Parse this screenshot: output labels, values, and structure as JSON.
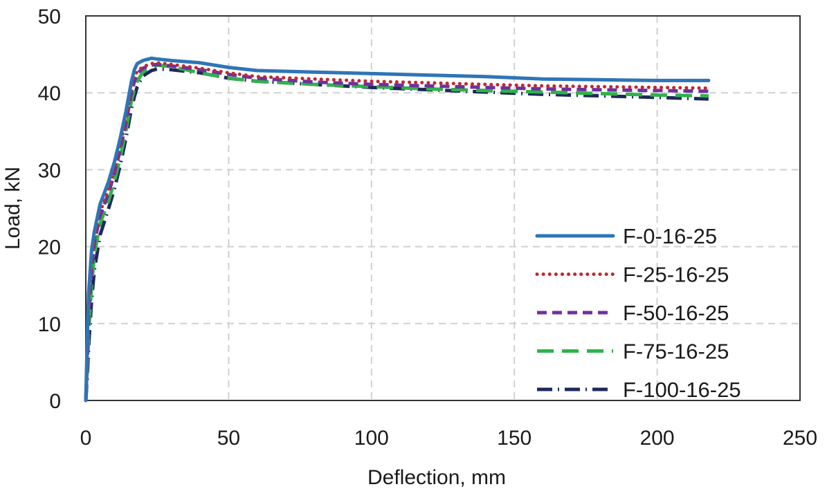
{
  "chart_data": {
    "type": "line",
    "title": "",
    "xlabel": "Deflection, mm",
    "ylabel": "Load, kN",
    "xlim": [
      0,
      250
    ],
    "ylim": [
      0,
      50
    ],
    "x_ticks": [
      0,
      50,
      100,
      150,
      200,
      250
    ],
    "y_ticks": [
      0,
      10,
      20,
      30,
      40,
      50
    ],
    "x_tick_labels": [
      "0",
      "50",
      "100",
      "150",
      "200",
      "250"
    ],
    "y_tick_labels": [
      "0",
      "10",
      "20",
      "30",
      "40",
      "50"
    ],
    "grid": "dashed",
    "legend_position": "right-center",
    "series": [
      {
        "name": "F-0-16-25",
        "color": "#2E75B6",
        "style": "solid",
        "x": [
          0,
          0.5,
          1,
          2,
          3,
          5,
          8,
          10,
          12,
          14,
          15,
          16,
          17,
          18,
          20,
          23,
          25,
          30,
          40,
          50,
          60,
          80,
          100,
          120,
          140,
          160,
          180,
          200,
          218
        ],
        "y": [
          0,
          8,
          14,
          19.5,
          22,
          25.5,
          28.5,
          31,
          34,
          37.5,
          39.5,
          41.5,
          43,
          43.8,
          44.2,
          44.5,
          44.4,
          44.2,
          43.9,
          43.3,
          42.9,
          42.7,
          42.5,
          42.3,
          42.1,
          41.8,
          41.7,
          41.6,
          41.6
        ]
      },
      {
        "name": "F-25-16-25",
        "color": "#C0282D",
        "style": "dotted",
        "x": [
          0,
          0.5,
          1,
          2,
          3,
          5,
          8,
          10,
          12,
          14,
          15,
          16,
          17,
          18,
          20,
          23,
          25,
          30,
          40,
          50,
          60,
          80,
          100,
          120,
          140,
          160,
          180,
          200,
          218
        ],
        "y": [
          0,
          6,
          12,
          18,
          21,
          24.5,
          27.5,
          30,
          33,
          36.5,
          38.5,
          40.5,
          42,
          42.8,
          43.4,
          43.8,
          43.9,
          43.7,
          43.2,
          42.6,
          42.1,
          41.8,
          41.5,
          41.3,
          41.1,
          40.9,
          40.8,
          40.7,
          40.6
        ]
      },
      {
        "name": "F-50-16-25",
        "color": "#7030A0",
        "style": "dashed",
        "x": [
          0,
          0.5,
          1,
          2,
          3,
          5,
          8,
          10,
          12,
          14,
          15,
          16,
          17,
          18,
          20,
          23,
          25,
          30,
          40,
          50,
          60,
          80,
          100,
          120,
          140,
          160,
          180,
          200,
          218
        ],
        "y": [
          0,
          5,
          11,
          17,
          20.5,
          24,
          27,
          29.5,
          32.5,
          36,
          38,
          40,
          41.5,
          42.5,
          43.2,
          43.6,
          43.7,
          43.5,
          43,
          42.4,
          41.9,
          41.4,
          41.1,
          40.9,
          40.7,
          40.5,
          40.4,
          40.3,
          40.2
        ]
      },
      {
        "name": "F-75-16-25",
        "color": "#2EB34A",
        "style": "longdash",
        "x": [
          0,
          0.5,
          1,
          2,
          3,
          5,
          8,
          10,
          12,
          14,
          15,
          16,
          17,
          18,
          20,
          23,
          25,
          30,
          40,
          50,
          60,
          80,
          100,
          120,
          140,
          160,
          180,
          200,
          218
        ],
        "y": [
          0,
          4,
          9,
          15,
          19,
          23,
          26,
          28.5,
          31.5,
          35,
          37,
          39,
          40.5,
          41.5,
          42.7,
          43.4,
          43.6,
          43.4,
          42.6,
          41.9,
          41.5,
          41.1,
          40.8,
          40.5,
          40.3,
          40.1,
          39.9,
          39.7,
          39.6
        ]
      },
      {
        "name": "F-100-16-25",
        "color": "#1F2A5A",
        "style": "dashdot",
        "x": [
          0,
          0.5,
          1,
          2,
          3,
          5,
          8,
          10,
          12,
          14,
          15,
          16,
          17,
          18,
          20,
          23,
          25,
          30,
          40,
          50,
          60,
          80,
          100,
          120,
          140,
          160,
          180,
          200,
          218
        ],
        "y": [
          0,
          3,
          7,
          13,
          17,
          21.5,
          25,
          27.5,
          30.5,
          34,
          36,
          38,
          39.5,
          40.8,
          42.2,
          42.9,
          43.1,
          43.0,
          42.6,
          41.9,
          41.5,
          41.1,
          40.7,
          40.4,
          40.1,
          39.8,
          39.6,
          39.4,
          39.2
        ]
      }
    ]
  }
}
